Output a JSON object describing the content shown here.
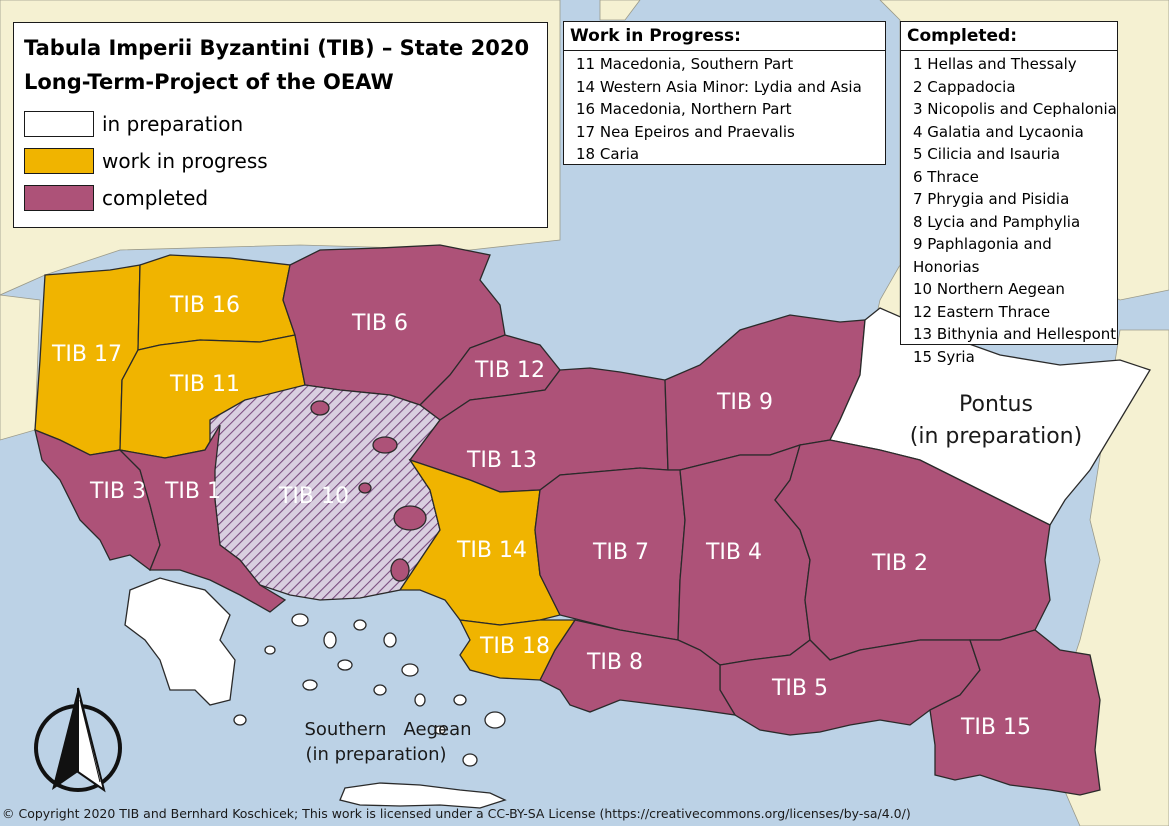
{
  "title": {
    "line1": "Tabula Imperii Byzantini (TIB) – State 2020",
    "line2": "Long-Term-Project of the OEAW"
  },
  "legend": [
    {
      "label": "in preparation",
      "color": "#ffffff"
    },
    {
      "label": "work in progress",
      "color": "#f0b400"
    },
    {
      "label": "completed",
      "color": "#ad5278"
    }
  ],
  "work_in_progress": {
    "heading": "Work in Progress:",
    "items": [
      "11 Macedonia, Southern Part",
      "14 Western Asia Minor: Lydia and Asia",
      "16 Macedonia, Northern Part",
      "17 Nea Epeiros and Praevalis",
      "18 Caria"
    ]
  },
  "completed": {
    "heading": "Completed:",
    "items": [
      "1 Hellas and Thessaly",
      "2 Cappadocia",
      "3 Nicopolis and Cephalonia",
      "4 Galatia and Lycaonia",
      "5 Cilicia and Isauria",
      "6 Thrace",
      "7 Phrygia and Pisidia",
      "8 Lycia and Pamphylia",
      "9 Paphlagonia and Honorias",
      "10 Northern Aegean",
      "12 Eastern Thrace",
      "13 Bithynia and Hellespont",
      "15 Syria"
    ]
  },
  "map_labels": {
    "tib1": "TIB 1",
    "tib2": "TIB 2",
    "tib3": "TIB 3",
    "tib4": "TIB 4",
    "tib5": "TIB 5",
    "tib6": "TIB 6",
    "tib7": "TIB 7",
    "tib8": "TIB 8",
    "tib9": "TIB 9",
    "tib10": "TIB 10",
    "tib11": "TIB 11",
    "tib12": "TIB 12",
    "tib13": "TIB 13",
    "tib14": "TIB 14",
    "tib15": "TIB 15",
    "tib16": "TIB 16",
    "tib17": "TIB 17",
    "tib18": "TIB 18",
    "pontus_line1": "Pontus",
    "pontus_line2": "(in preparation)",
    "south_aegean_line1": "Southern   Aegean",
    "south_aegean_line2": "(in preparation)"
  },
  "copyright": "© Copyright 2020 TIB and Bernhard Koschicek; This work is licensed under a CC-BY-SA License (https://creativecommons.org/licenses/by-sa/4.0/)"
}
